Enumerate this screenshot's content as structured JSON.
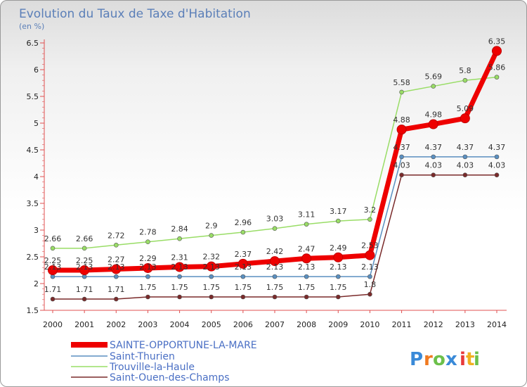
{
  "chart_data": {
    "type": "line",
    "title": "Evolution du Taux de Taxe d'Habitation",
    "unit_label": "(en %)",
    "categories": [
      "2000",
      "2001",
      "2002",
      "2003",
      "2004",
      "2005",
      "2006",
      "2007",
      "2008",
      "2009",
      "2010",
      "2011",
      "2012",
      "2013",
      "2014"
    ],
    "ylim": [
      1.5,
      6.5
    ],
    "y_ticks": [
      "1.5",
      "2",
      "2.5",
      "3",
      "3.5",
      "4",
      "4.5",
      "5",
      "5.5",
      "6",
      "6.5"
    ],
    "grid": false,
    "legend_position": "bottom-left",
    "series": [
      {
        "name": "SAINTE-OPPORTUNE-LA-MARE",
        "color": "#ee0000",
        "values": [
          2.25,
          2.25,
          2.27,
          2.29,
          2.31,
          2.32,
          2.37,
          2.42,
          2.47,
          2.49,
          2.53,
          4.88,
          4.98,
          5.09,
          6.35
        ],
        "labels": [
          "2.25",
          "2.25",
          "2.27",
          "2.29",
          "2.31",
          "2.32",
          "2.37",
          "2.42",
          "2.47",
          "2.49",
          "2.53",
          "4.88",
          "4.98",
          "5.09",
          "6.35"
        ]
      },
      {
        "name": "Saint-Thurien",
        "color": "#5a8fc0",
        "values": [
          2.13,
          2.13,
          2.13,
          2.13,
          2.13,
          2.13,
          2.13,
          2.13,
          2.13,
          2.13,
          2.13,
          4.37,
          4.37,
          4.37,
          4.37
        ],
        "labels": [
          "2.13",
          "2.13",
          "2.13",
          "2.13",
          "2.13",
          "2.13",
          "2.13",
          "2.13",
          "2.13",
          "2.13",
          "2.13",
          "4.37",
          "4.37",
          "4.37",
          "4.37"
        ]
      },
      {
        "name": "Trouville-la-Haule",
        "color": "#99dd66",
        "values": [
          2.66,
          2.66,
          2.72,
          2.78,
          2.84,
          2.9,
          2.96,
          3.03,
          3.11,
          3.17,
          3.2,
          5.58,
          5.69,
          5.8,
          5.86
        ],
        "labels": [
          "2.66",
          "2.66",
          "2.72",
          "2.78",
          "2.84",
          "2.9",
          "2.96",
          "3.03",
          "3.11",
          "3.17",
          "3.2",
          "5.58",
          "5.69",
          "5.8",
          "5.86"
        ]
      },
      {
        "name": "Saint-Ouen-des-Champs",
        "color": "#7a2a2a",
        "values": [
          1.71,
          1.71,
          1.71,
          1.75,
          1.75,
          1.75,
          1.75,
          1.75,
          1.75,
          1.75,
          1.8,
          4.03,
          4.03,
          4.03,
          4.03
        ],
        "labels": [
          "1.71",
          "1.71",
          "1.71",
          "1.75",
          "1.75",
          "1.75",
          "1.75",
          "1.75",
          "1.75",
          "1.75",
          "1.8",
          "4.03",
          "4.03",
          "4.03",
          "4.03"
        ]
      }
    ]
  },
  "logo": {
    "letters": [
      "P",
      "r",
      "o",
      "x",
      "i",
      "t",
      "i"
    ],
    "colors": [
      "#3a8ad8",
      "#f07a20",
      "#6cc04a",
      "#3a8ad8",
      "#e83a3a",
      "#f0b020",
      "#6cc04a"
    ]
  }
}
